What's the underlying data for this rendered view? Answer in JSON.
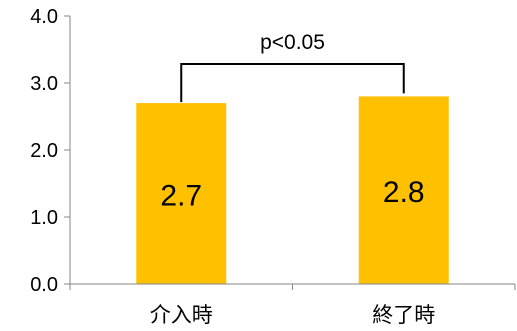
{
  "chart_data": {
    "type": "bar",
    "title": "",
    "xlabel": "",
    "ylabel": "",
    "categories": [
      "介入時",
      "終了時"
    ],
    "values": [
      2.7,
      2.8
    ],
    "data_labels": [
      "2.7",
      "2.8"
    ],
    "ylim": [
      0,
      4
    ],
    "yticks": [
      0,
      1,
      2,
      3,
      4
    ],
    "ytick_labels": [
      "0.0",
      "1.0",
      "2.0",
      "3.0",
      "4.0"
    ],
    "grid": false,
    "bar_color": "#FFC000",
    "annotations": [
      {
        "type": "significance-bracket",
        "from": "介入時",
        "to": "終了時",
        "text": "p<0.05"
      }
    ]
  }
}
